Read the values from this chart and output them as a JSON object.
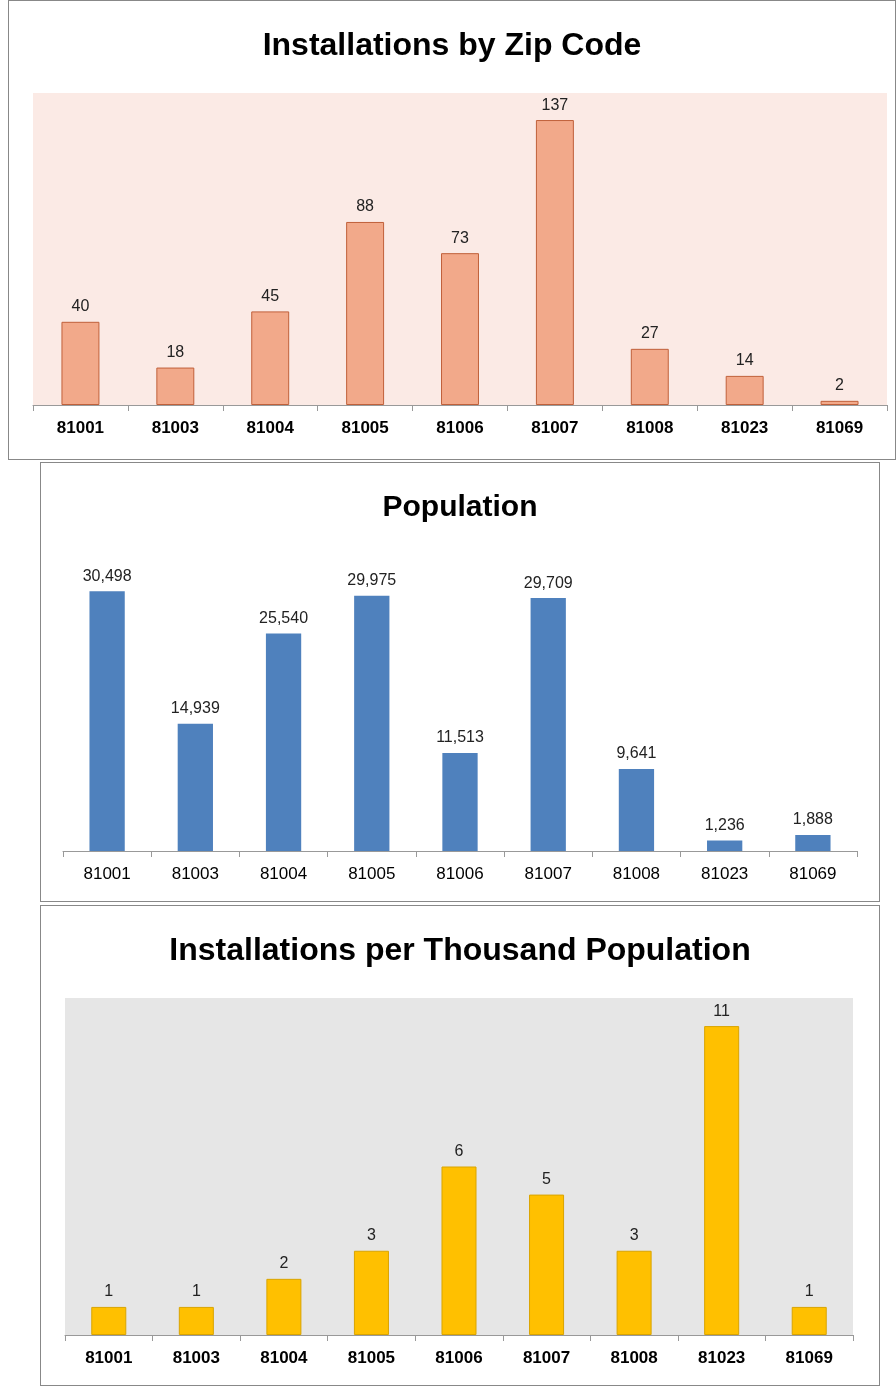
{
  "chart_data": [
    {
      "type": "bar",
      "title": "Installations by Zip Code",
      "categories": [
        "81001",
        "81003",
        "81004",
        "81005",
        "81006",
        "81007",
        "81008",
        "81023",
        "81069"
      ],
      "values": [
        40,
        18,
        45,
        88,
        73,
        137,
        27,
        14,
        2
      ],
      "color": "#f2a98a",
      "data_labels": true
    },
    {
      "type": "bar",
      "title": "Population",
      "categories": [
        "81001",
        "81003",
        "81004",
        "81005",
        "81006",
        "81007",
        "81008",
        "81023",
        "81069"
      ],
      "values": [
        30498,
        14939,
        25540,
        29975,
        11513,
        29709,
        9641,
        1236,
        1888
      ],
      "color": "#4f81bd",
      "value_labels": [
        "30,498",
        "14,939",
        "25,540",
        "29,975",
        "11,513",
        "29,709",
        "9,641",
        "1,236",
        "1,888"
      ]
    },
    {
      "type": "bar",
      "title": "Installations per Thousand Population",
      "categories": [
        "81001",
        "81003",
        "81004",
        "81005",
        "81006",
        "81007",
        "81008",
        "81023",
        "81069"
      ],
      "values": [
        1,
        1,
        2,
        3,
        6,
        5,
        3,
        11,
        1
      ],
      "color": "#ffc000",
      "data_labels": true
    }
  ]
}
